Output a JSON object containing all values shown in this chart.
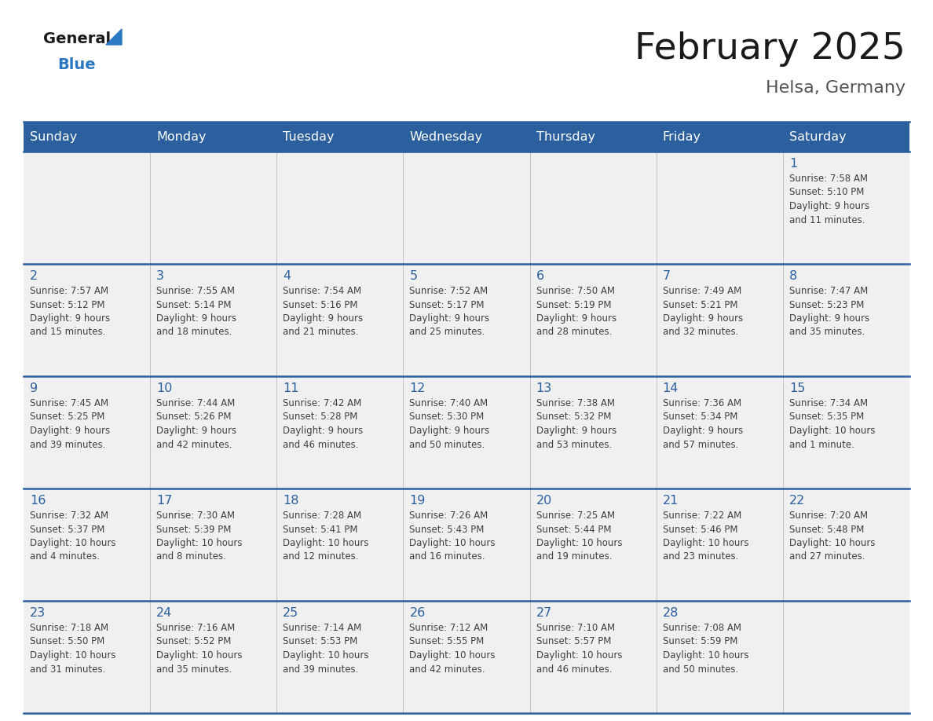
{
  "title": "February 2025",
  "subtitle": "Helsa, Germany",
  "days_of_week": [
    "Sunday",
    "Monday",
    "Tuesday",
    "Wednesday",
    "Thursday",
    "Friday",
    "Saturday"
  ],
  "header_bg": "#2B5F9E",
  "header_text_color": "#FFFFFF",
  "cell_bg": "#F0F0F0",
  "grid_line_color": "#2B5F9E",
  "text_color": "#404040",
  "day_number_color": "#2B5F9E",
  "logo_general_color": "#1a1a1a",
  "logo_blue_color": "#2B79C2",
  "calendar_data": {
    "1": {
      "sunrise": "7:58 AM",
      "sunset": "5:10 PM",
      "daylight": "9 hours",
      "daylight2": "and 11 minutes."
    },
    "2": {
      "sunrise": "7:57 AM",
      "sunset": "5:12 PM",
      "daylight": "9 hours",
      "daylight2": "and 15 minutes."
    },
    "3": {
      "sunrise": "7:55 AM",
      "sunset": "5:14 PM",
      "daylight": "9 hours",
      "daylight2": "and 18 minutes."
    },
    "4": {
      "sunrise": "7:54 AM",
      "sunset": "5:16 PM",
      "daylight": "9 hours",
      "daylight2": "and 21 minutes."
    },
    "5": {
      "sunrise": "7:52 AM",
      "sunset": "5:17 PM",
      "daylight": "9 hours",
      "daylight2": "and 25 minutes."
    },
    "6": {
      "sunrise": "7:50 AM",
      "sunset": "5:19 PM",
      "daylight": "9 hours",
      "daylight2": "and 28 minutes."
    },
    "7": {
      "sunrise": "7:49 AM",
      "sunset": "5:21 PM",
      "daylight": "9 hours",
      "daylight2": "and 32 minutes."
    },
    "8": {
      "sunrise": "7:47 AM",
      "sunset": "5:23 PM",
      "daylight": "9 hours",
      "daylight2": "and 35 minutes."
    },
    "9": {
      "sunrise": "7:45 AM",
      "sunset": "5:25 PM",
      "daylight": "9 hours",
      "daylight2": "and 39 minutes."
    },
    "10": {
      "sunrise": "7:44 AM",
      "sunset": "5:26 PM",
      "daylight": "9 hours",
      "daylight2": "and 42 minutes."
    },
    "11": {
      "sunrise": "7:42 AM",
      "sunset": "5:28 PM",
      "daylight": "9 hours",
      "daylight2": "and 46 minutes."
    },
    "12": {
      "sunrise": "7:40 AM",
      "sunset": "5:30 PM",
      "daylight": "9 hours",
      "daylight2": "and 50 minutes."
    },
    "13": {
      "sunrise": "7:38 AM",
      "sunset": "5:32 PM",
      "daylight": "9 hours",
      "daylight2": "and 53 minutes."
    },
    "14": {
      "sunrise": "7:36 AM",
      "sunset": "5:34 PM",
      "daylight": "9 hours",
      "daylight2": "and 57 minutes."
    },
    "15": {
      "sunrise": "7:34 AM",
      "sunset": "5:35 PM",
      "daylight": "10 hours",
      "daylight2": "and 1 minute."
    },
    "16": {
      "sunrise": "7:32 AM",
      "sunset": "5:37 PM",
      "daylight": "10 hours",
      "daylight2": "and 4 minutes."
    },
    "17": {
      "sunrise": "7:30 AM",
      "sunset": "5:39 PM",
      "daylight": "10 hours",
      "daylight2": "and 8 minutes."
    },
    "18": {
      "sunrise": "7:28 AM",
      "sunset": "5:41 PM",
      "daylight": "10 hours",
      "daylight2": "and 12 minutes."
    },
    "19": {
      "sunrise": "7:26 AM",
      "sunset": "5:43 PM",
      "daylight": "10 hours",
      "daylight2": "and 16 minutes."
    },
    "20": {
      "sunrise": "7:25 AM",
      "sunset": "5:44 PM",
      "daylight": "10 hours",
      "daylight2": "and 19 minutes."
    },
    "21": {
      "sunrise": "7:22 AM",
      "sunset": "5:46 PM",
      "daylight": "10 hours",
      "daylight2": "and 23 minutes."
    },
    "22": {
      "sunrise": "7:20 AM",
      "sunset": "5:48 PM",
      "daylight": "10 hours",
      "daylight2": "and 27 minutes."
    },
    "23": {
      "sunrise": "7:18 AM",
      "sunset": "5:50 PM",
      "daylight": "10 hours",
      "daylight2": "and 31 minutes."
    },
    "24": {
      "sunrise": "7:16 AM",
      "sunset": "5:52 PM",
      "daylight": "10 hours",
      "daylight2": "and 35 minutes."
    },
    "25": {
      "sunrise": "7:14 AM",
      "sunset": "5:53 PM",
      "daylight": "10 hours",
      "daylight2": "and 39 minutes."
    },
    "26": {
      "sunrise": "7:12 AM",
      "sunset": "5:55 PM",
      "daylight": "10 hours",
      "daylight2": "and 42 minutes."
    },
    "27": {
      "sunrise": "7:10 AM",
      "sunset": "5:57 PM",
      "daylight": "10 hours",
      "daylight2": "and 46 minutes."
    },
    "28": {
      "sunrise": "7:08 AM",
      "sunset": "5:59 PM",
      "daylight": "10 hours",
      "daylight2": "and 50 minutes."
    }
  },
  "weeks": [
    [
      null,
      null,
      null,
      null,
      null,
      null,
      1
    ],
    [
      2,
      3,
      4,
      5,
      6,
      7,
      8
    ],
    [
      9,
      10,
      11,
      12,
      13,
      14,
      15
    ],
    [
      16,
      17,
      18,
      19,
      20,
      21,
      22
    ],
    [
      23,
      24,
      25,
      26,
      27,
      28,
      null
    ]
  ]
}
